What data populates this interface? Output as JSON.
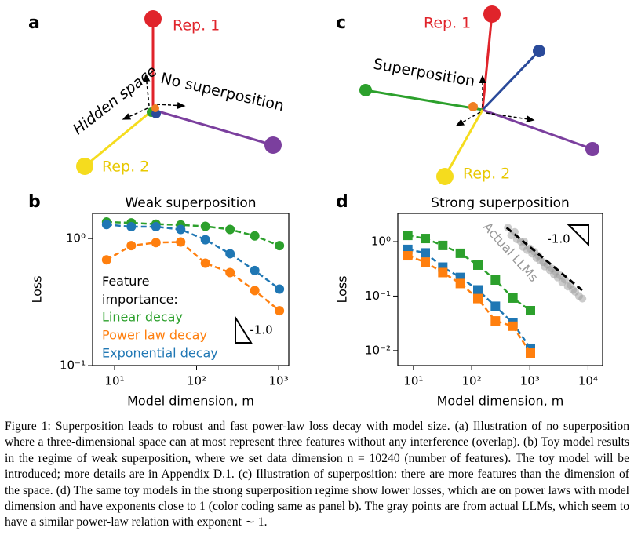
{
  "panels": {
    "a": {
      "label": "a",
      "rep1": "Rep. 1",
      "rep2": "Rep. 2",
      "hidden_space": "Hidden space",
      "note": "No superposition"
    },
    "c": {
      "label": "c",
      "rep1": "Rep. 1",
      "rep2": "Rep. 2",
      "note": "Superposition"
    }
  },
  "chart_data": [
    {
      "type": "line",
      "panel_label": "b",
      "title": "Weak superposition",
      "x_label": "Model dimension, m",
      "y_label": "Loss",
      "xscale": "log",
      "yscale": "log",
      "marker": "circle",
      "x": [
        8,
        16,
        32,
        64,
        128,
        256,
        512,
        1024
      ],
      "xlim": [
        5.4,
        1330
      ],
      "ylim": [
        0.1,
        1.58
      ],
      "xticks": [
        {
          "value": 10,
          "label": "10¹"
        },
        {
          "value": 100,
          "label": "10²"
        },
        {
          "value": 1000,
          "label": "10³"
        }
      ],
      "yticks": [
        {
          "value": 0.1,
          "label": "10⁻¹"
        },
        {
          "value": 1,
          "label": "10⁰"
        }
      ],
      "legend_title": "Feature importance:",
      "slope_label": "-1.0",
      "series": [
        {
          "name": "Linear decay",
          "color": "#2ca02c",
          "values": [
            1.35,
            1.33,
            1.3,
            1.28,
            1.25,
            1.18,
            1.05,
            0.88
          ]
        },
        {
          "name": "Power law decay",
          "color": "#ff7f0e",
          "values": [
            0.68,
            0.88,
            0.93,
            0.94,
            0.64,
            0.54,
            0.39,
            0.27
          ]
        },
        {
          "name": "Exponential decay",
          "color": "#1f77b4",
          "values": [
            1.29,
            1.24,
            1.24,
            1.18,
            0.98,
            0.76,
            0.56,
            0.4
          ]
        }
      ]
    },
    {
      "type": "line",
      "panel_label": "d",
      "title": "Strong superposition",
      "x_label": "Model dimension, m",
      "y_label": "Loss",
      "xscale": "log",
      "yscale": "log",
      "marker": "square",
      "x": [
        8,
        16,
        32,
        64,
        128,
        256,
        512,
        1024
      ],
      "xlim": [
        5.4,
        17800
      ],
      "ylim": [
        0.0053,
        3.3
      ],
      "xticks": [
        {
          "value": 10,
          "label": "10¹"
        },
        {
          "value": 100,
          "label": "10²"
        },
        {
          "value": 1000,
          "label": "10³"
        },
        {
          "value": 10000,
          "label": "10⁴"
        }
      ],
      "yticks": [
        {
          "value": 0.01,
          "label": "10⁻²"
        },
        {
          "value": 0.1,
          "label": "10⁻¹"
        },
        {
          "value": 1,
          "label": "10⁰"
        }
      ],
      "slope_label": "-1.0",
      "series": [
        {
          "color": "#2ca02c",
          "values": [
            1.3,
            1.14,
            0.85,
            0.61,
            0.37,
            0.197,
            0.092,
            0.054
          ]
        },
        {
          "color": "#1f77b4",
          "values": [
            0.72,
            0.62,
            0.34,
            0.22,
            0.13,
            0.065,
            0.032,
            0.011
          ]
        },
        {
          "color": "#ff7f0e",
          "values": [
            0.55,
            0.42,
            0.27,
            0.17,
            0.09,
            0.035,
            0.028,
            0.009
          ]
        },
        {
          "name": "Actual LLMs",
          "color": "#999999",
          "kind": "scatter",
          "x": [
            420,
            480,
            550,
            600,
            700,
            760,
            800,
            900,
            1000,
            1100,
            1200,
            1300,
            1400,
            1500,
            1700,
            1800,
            2000,
            2200,
            2400,
            2600,
            2800,
            3000,
            3300,
            3600,
            4000,
            4500,
            5000,
            5500,
            6000,
            7000,
            8000
          ],
          "values": [
            1.8,
            1.3,
            1.5,
            1.1,
            1.0,
            0.8,
            1.0,
            0.7,
            0.75,
            0.6,
            0.65,
            0.5,
            0.55,
            0.45,
            0.42,
            0.35,
            0.38,
            0.3,
            0.32,
            0.25,
            0.28,
            0.22,
            0.24,
            0.18,
            0.2,
            0.15,
            0.16,
            0.13,
            0.12,
            0.1,
            0.09
          ]
        }
      ],
      "trend": {
        "x": [
          400,
          8500
        ],
        "values": [
          1.8,
          0.12
        ]
      }
    }
  ],
  "caption": "Figure 1: Superposition leads to robust and fast power-law loss decay with model size. (a) Illustration of no superposition where a three-dimensional space can at most represent three features without any interference (overlap). (b) Toy model results in the regime of weak superposition, where we set data dimension n = 10240 (number of features). The toy model will be introduced; more details are in Appendix D.1. (c) Illustration of superposition: there are more features than the dimension of the space. (d) The same toy models in the strong superposition regime show lower losses, which are on power laws with model dimension and have exponents close to 1 (color coding same as panel b). The gray points are from actual LLMs, which seem to have a similar power-law relation with exponent ∼ 1."
}
